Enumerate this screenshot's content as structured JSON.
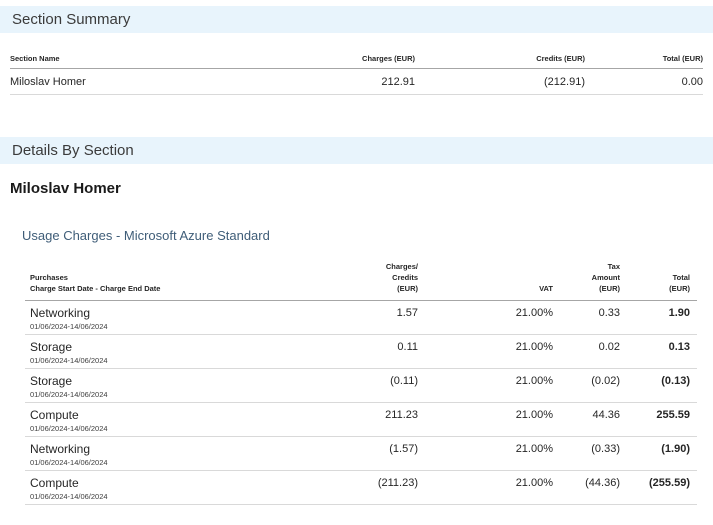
{
  "theme": {
    "band_bg": "#e8f4fc",
    "band_text_color": "#3b3b3b",
    "subsection_color": "#3f5d78",
    "header_rule_color": "#a6a6a6",
    "row_rule_color": "#d9d9d9"
  },
  "section_summary": {
    "title": "Section Summary",
    "table": {
      "header": {
        "name": "Section Name",
        "charges_line1": "Charges",
        "charges_line2": "(EUR)",
        "credits_line1": "Credits",
        "credits_line2": "(EUR)",
        "total_line1": "Total",
        "total_line2": "(EUR)"
      },
      "rows": [
        {
          "name": "Miloslav Homer",
          "charges": "212.91",
          "credits": "(212.91)",
          "total": "0.00"
        }
      ]
    }
  },
  "details_by_section": {
    "title": "Details By Section",
    "section_heading": "Miloslav Homer",
    "subsection_heading": "Usage Charges - Microsoft Azure Standard",
    "table": {
      "header": {
        "purchases_line1": "Purchases",
        "purchases_line2": "Charge Start Date - Charge End Date",
        "charges_line1": "Charges/",
        "charges_line2": "Credits",
        "charges_line3": "(EUR)",
        "vat": "VAT",
        "tax_line1": "Tax",
        "tax_line2": "Amount",
        "tax_line3": "(EUR)",
        "total_line1": "Total",
        "total_line2": "(EUR)"
      },
      "rows": [
        {
          "purchase": "Networking",
          "period": "01/06/2024-14/06/2024",
          "charges": "1.57",
          "vat": "21.00%",
          "tax": "0.33",
          "total": "1.90"
        },
        {
          "purchase": "Storage",
          "period": "01/06/2024-14/06/2024",
          "charges": "0.11",
          "vat": "21.00%",
          "tax": "0.02",
          "total": "0.13"
        },
        {
          "purchase": "Storage",
          "period": "01/06/2024-14/06/2024",
          "charges": "(0.11)",
          "vat": "21.00%",
          "tax": "(0.02)",
          "total": "(0.13)"
        },
        {
          "purchase": "Compute",
          "period": "01/06/2024-14/06/2024",
          "charges": "211.23",
          "vat": "21.00%",
          "tax": "44.36",
          "total": "255.59"
        },
        {
          "purchase": "Networking",
          "period": "01/06/2024-14/06/2024",
          "charges": "(1.57)",
          "vat": "21.00%",
          "tax": "(0.33)",
          "total": "(1.90)"
        },
        {
          "purchase": "Compute",
          "period": "01/06/2024-14/06/2024",
          "charges": "(211.23)",
          "vat": "21.00%",
          "tax": "(44.36)",
          "total": "(255.59)"
        }
      ]
    }
  }
}
